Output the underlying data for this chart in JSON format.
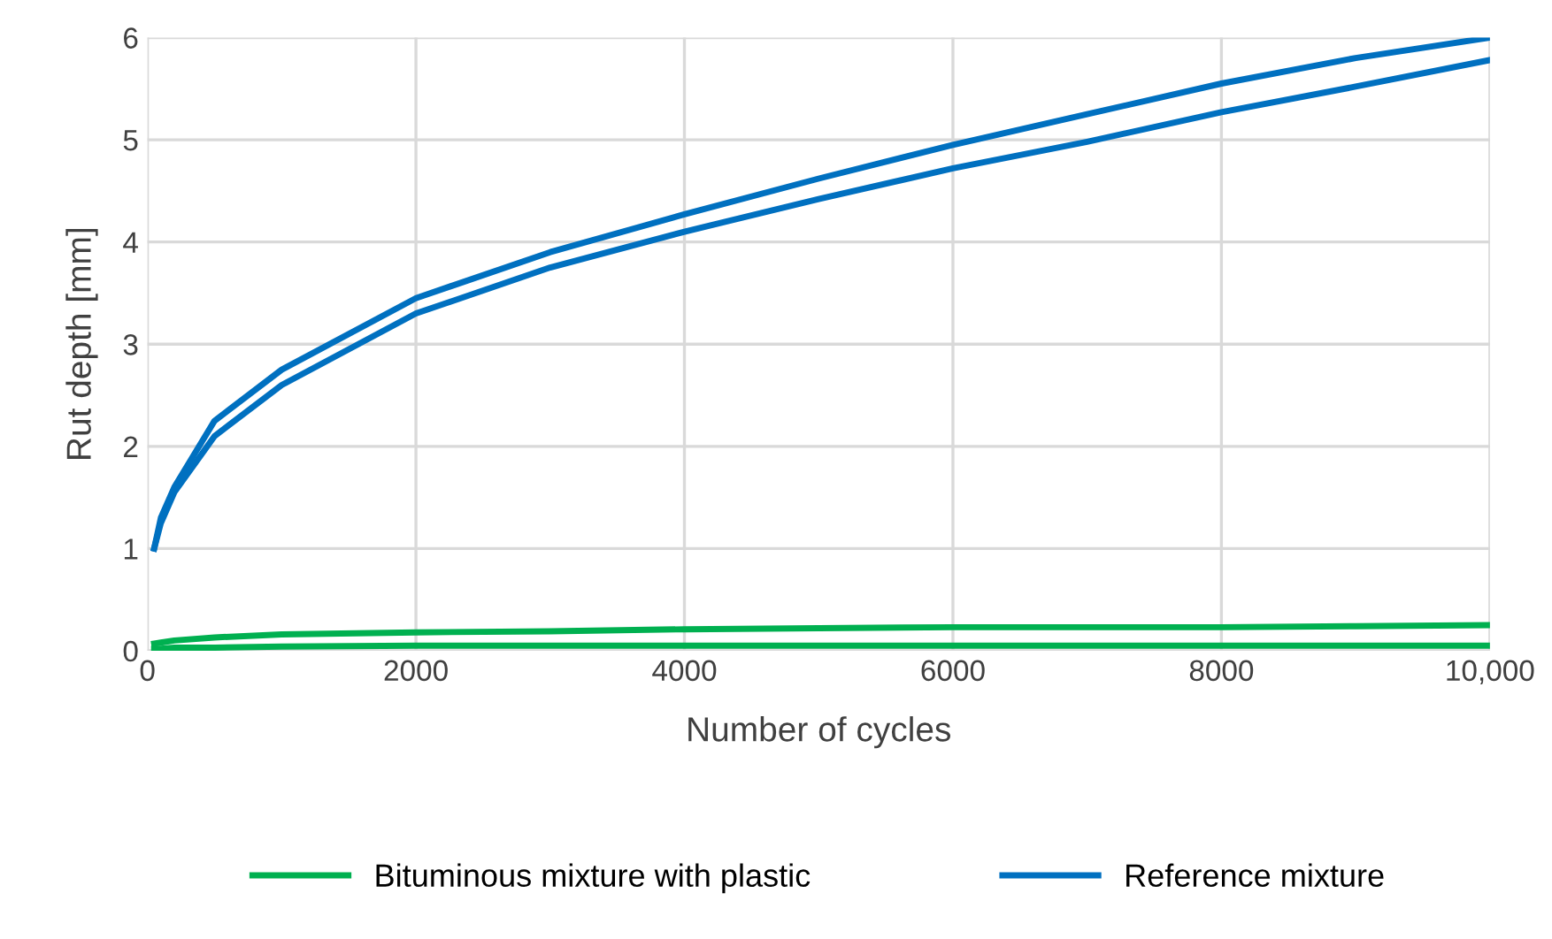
{
  "chart_data": {
    "type": "line",
    "xlabel": "Number of cycles",
    "ylabel": "Rut depth [mm]",
    "xlim": [
      0,
      10000
    ],
    "xticks": [
      0,
      2000,
      4000,
      6000,
      8000,
      {
        "value": 10000,
        "label": "10,000"
      }
    ],
    "ylim": [
      0,
      6
    ],
    "yticks": [
      0,
      1,
      2,
      3,
      4,
      5,
      6
    ],
    "grid": true,
    "legend": "bottom",
    "marker": "none",
    "line_style": "solid",
    "x": [
      50,
      100,
      200,
      500,
      1000,
      2000,
      3000,
      4000,
      5000,
      6000,
      7000,
      8000,
      9000,
      10000
    ],
    "series": [
      {
        "name": "Bituminous mixture with plastic",
        "color": "#00b050",
        "values": [
          0.07,
          0.08,
          0.1,
          0.13,
          0.16,
          0.18,
          0.19,
          0.21,
          0.22,
          0.23,
          0.23,
          0.23,
          0.24,
          0.25
        ]
      },
      {
        "color": "#00b050",
        "values": [
          0.02,
          0.02,
          0.03,
          0.03,
          0.04,
          0.05,
          0.05,
          0.05,
          0.05,
          0.05,
          0.05,
          0.05,
          0.05,
          0.05
        ]
      },
      {
        "name": "Reference mixture",
        "color": "#0070c0",
        "values": [
          1.0,
          1.3,
          1.6,
          2.25,
          2.75,
          3.45,
          3.9,
          4.27,
          4.62,
          4.95,
          5.25,
          5.55,
          5.8,
          6.0
        ]
      },
      {
        "color": "#0070c0",
        "values": [
          1.0,
          1.25,
          1.55,
          2.1,
          2.6,
          3.3,
          3.75,
          4.1,
          4.42,
          4.72,
          4.98,
          5.27,
          5.52,
          5.78
        ]
      }
    ]
  }
}
